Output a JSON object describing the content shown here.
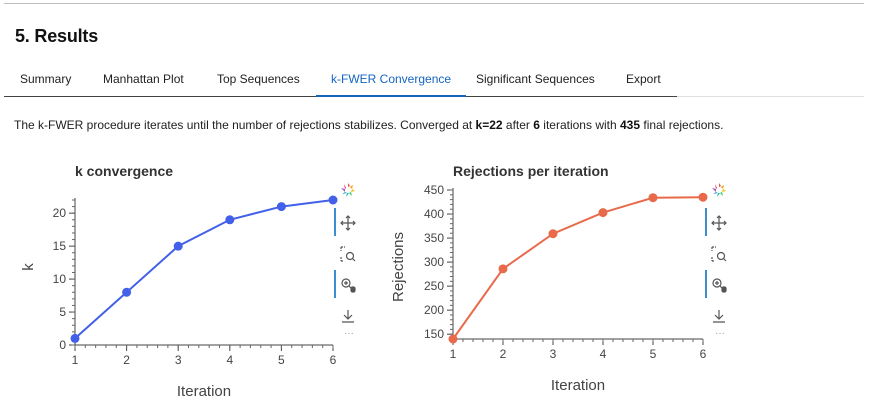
{
  "header": {
    "title": "5. Results"
  },
  "tabs": [
    {
      "label": "Summary",
      "active": false
    },
    {
      "label": "Manhattan Plot",
      "active": false
    },
    {
      "label": "Top Sequences",
      "active": false
    },
    {
      "label": "k-FWER Convergence",
      "active": true
    },
    {
      "label": "Significant Sequences",
      "active": false
    },
    {
      "label": "Export",
      "active": false
    }
  ],
  "description": {
    "text_1": "The k-FWER procedure iterates until the number of rejections stabilizes. Converged at ",
    "k_text": "k=22",
    "text_2": " after ",
    "iterations": "6",
    "text_3": " iterations with ",
    "rejections": "435",
    "text_4": " final rejections."
  },
  "toolbar": {
    "icons": [
      "bokeh-logo-icon",
      "pan-icon",
      "box-zoom-icon",
      "wheel-zoom-icon",
      "save-icon"
    ],
    "more_label": "···"
  },
  "chart_data": [
    {
      "type": "line",
      "title": "k convergence",
      "xlabel": "Iteration",
      "ylabel": "k",
      "x": [
        1,
        2,
        3,
        4,
        5,
        6
      ],
      "series": [
        {
          "values": [
            1,
            8,
            15,
            19,
            21,
            22
          ]
        }
      ],
      "xlim": [
        1,
        6
      ],
      "ylim": [
        0,
        22
      ],
      "xticks": [
        "1",
        "2",
        "3",
        "4",
        "5",
        "6"
      ],
      "yticks": [
        "0",
        "5",
        "10",
        "15",
        "20"
      ],
      "grid": false,
      "color": "#4361e8"
    },
    {
      "type": "line",
      "title": "Rejections per iteration",
      "xlabel": "Iteration",
      "ylabel": "Rejections",
      "x": [
        1,
        2,
        3,
        4,
        5,
        6
      ],
      "series": [
        {
          "values": [
            140,
            286,
            359,
            403,
            434,
            435
          ]
        }
      ],
      "xlim": [
        1,
        6
      ],
      "ylim": [
        140,
        450
      ],
      "xticks": [
        "1",
        "2",
        "3",
        "4",
        "5",
        "6"
      ],
      "yticks": [
        "150",
        "200",
        "250",
        "300",
        "350",
        "400",
        "450"
      ],
      "grid": false,
      "color": "#e86a4a"
    }
  ]
}
